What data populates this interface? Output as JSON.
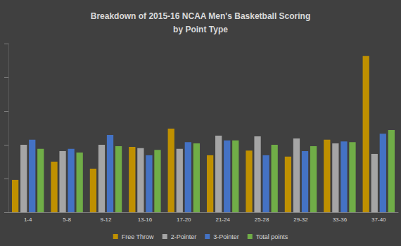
{
  "chart_data": {
    "type": "bar",
    "title": "Breakdown of 2015-16 NCAA Men's Basketball Scoring\nby Point Type",
    "categories": [
      "1-4",
      "5-8",
      "9-12",
      "13-16",
      "17-20",
      "21-24",
      "25-28",
      "29-32",
      "33-36",
      "37-40"
    ],
    "series": [
      {
        "name": "Free Throw",
        "color": "#bf9000",
        "values": [
          0.96,
          1.5,
          1.29,
          1.94,
          2.48,
          1.69,
          1.83,
          1.65,
          2.15,
          4.63
        ]
      },
      {
        "name": "2-Pointer",
        "color": "#a5a5a5",
        "values": [
          2.0,
          1.81,
          2.0,
          1.9,
          1.88,
          2.27,
          2.25,
          2.19,
          2.04,
          1.73
        ]
      },
      {
        "name": "3-Pointer",
        "color": "#4472c4",
        "values": [
          2.15,
          1.88,
          2.29,
          1.69,
          2.08,
          2.13,
          1.69,
          1.81,
          2.1,
          2.33
        ]
      },
      {
        "name": "Total points",
        "color": "#70ad47",
        "values": [
          1.88,
          1.77,
          1.96,
          1.85,
          2.04,
          2.13,
          2.0,
          1.96,
          2.08,
          2.44
        ]
      }
    ],
    "ylim": [
      0,
      5
    ],
    "yticks": [
      0,
      1,
      2,
      3,
      4,
      5
    ],
    "grid": false,
    "legend": "bottom",
    "tick_labels": "x"
  }
}
